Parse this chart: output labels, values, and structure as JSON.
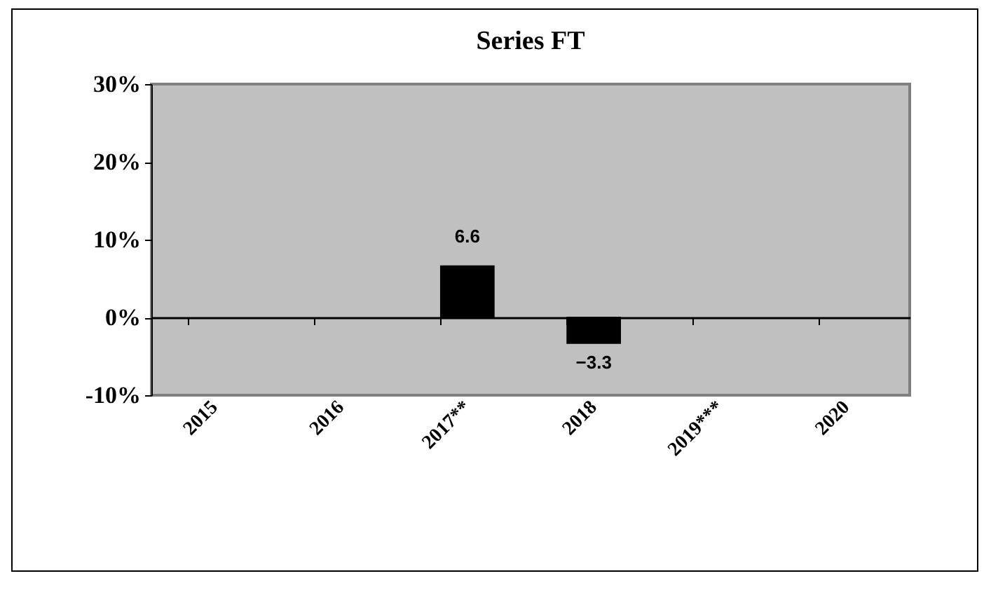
{
  "chart_data": {
    "type": "bar",
    "title": "Series FT",
    "categories": [
      "2015",
      "2016",
      "2017**",
      "2018",
      "2019***",
      "2020"
    ],
    "values": [
      null,
      null,
      6.6,
      -3.3,
      null,
      null
    ],
    "color": "#000000",
    "ylim": [
      -10,
      30
    ],
    "yticks": [
      {
        "value": -10,
        "label": "-10%"
      },
      {
        "value": 0,
        "label": "0%"
      },
      {
        "value": 10,
        "label": "10%"
      },
      {
        "value": 20,
        "label": "20%"
      },
      {
        "value": 30,
        "label": "30%"
      }
    ],
    "data_labels": true
  }
}
